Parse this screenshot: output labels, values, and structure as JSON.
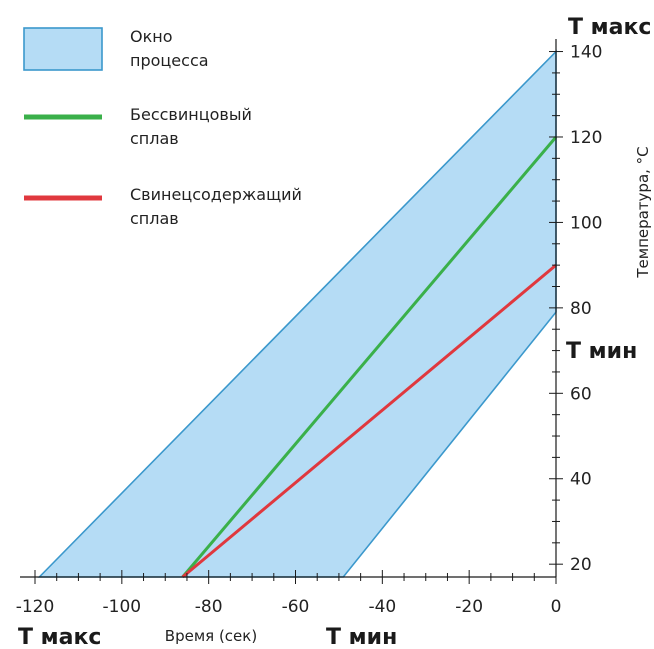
{
  "chart_data": {
    "type": "line",
    "xlabel": "Время (сек)",
    "ylabel": "Температура, °C",
    "xlim": [
      -120,
      0
    ],
    "ylim": [
      17,
      142
    ],
    "x_ticks": [
      -120,
      -100,
      -80,
      -60,
      -40,
      -20,
      0
    ],
    "y_ticks": [
      20,
      40,
      60,
      80,
      100,
      120,
      140
    ],
    "x_minor_step": 5,
    "y_minor_step": 5,
    "region": {
      "name": "Окно процесса",
      "color": "#b5dcf5",
      "border_color": "#3b98cc",
      "polygon": [
        [
          -119,
          17
        ],
        [
          0,
          140
        ],
        [
          0,
          79
        ],
        [
          -49,
          17
        ]
      ]
    },
    "series": [
      {
        "name": "Бессвинцовый сплав",
        "color": "#3ab04a",
        "x": [
          -86,
          0
        ],
        "y": [
          17,
          120
        ]
      },
      {
        "name": "Свинецсодержащий сплав",
        "color": "#e0383e",
        "x": [
          -86,
          0
        ],
        "y": [
          17,
          90
        ]
      }
    ],
    "legend": {
      "placement": "top-left",
      "entries": [
        {
          "kind": "region",
          "line1": "Окно",
          "line2": "процесса"
        },
        {
          "kind": "line",
          "line1": "Бессвинцовый",
          "line2": "сплав"
        },
        {
          "kind": "line",
          "line1": "Свинецсодержащий",
          "line2": "сплав"
        }
      ]
    },
    "annotations": {
      "y_max": "T макс",
      "y_min": "T мин",
      "x_max": "T макс",
      "x_min": "T мин"
    }
  }
}
